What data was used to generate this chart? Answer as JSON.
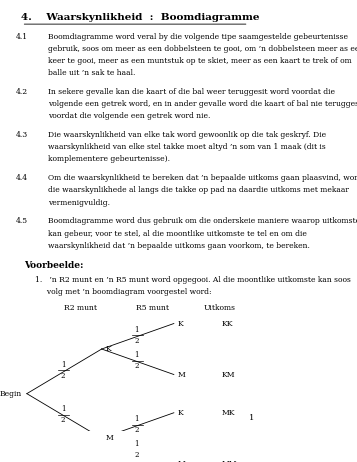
{
  "title": "4.    Waarskynlikheid  :  Boomdiagramme",
  "background_color": "#ffffff",
  "text_color": "#000000",
  "page_number": "1",
  "sections": [
    {
      "num": "4.1",
      "text": "Boomdiagramme word veral by die volgende tipe saamgestelde gebeurtenisse\ngebruik, soos om meer as een dobbelsteen te gooi, om ’n dobbelsteen meer as een\nkeer te gooi, meer as een muntstuk op te skiet, meer as een kaart te trek of om\nballe uit ’n sak te haal."
    },
    {
      "num": "4.2",
      "text": "In sekere gevalle kan die kaart of die bal weer teruggesit word voordat die\nvolgende een getrek word, en in ander gevalle word die kaart of bal nie teruggesit\nvoordat die volgende een getrek word nie."
    },
    {
      "num": "4.3",
      "text": "Die waarskynlikheid van elke tak word gewoonlik op die tak geskryf. Die\nwaarskynlikheid van elke stel takke moet altyd ’n som van 1 maak (dit is\nkomplementere gebeurtenisse)."
    },
    {
      "num": "4.4",
      "text": "Om die waarskynlikheid te bereken dat ’n bepaalde uitkoms gaan plaasvind, word\ndie waarskynlikhede al langs die takke op pad na daardie uitkoms met mekaar\nvermenigvuldig."
    },
    {
      "num": "4.5",
      "text": "Boomdiagramme word dus gebruik om die onderskeie maniere waarop uitkomste\nkan gebeur, voor te stel, al die moontlike uitkomste te tel en om die\nwaarskynlikheid dat ’n bepaalde uitkoms gaan voorkom, te bereken."
    }
  ],
  "voorbeelde_title": "Voorbeelde:",
  "example_intro": "1.   ’n R2 munt en ’n R5 munt word opgegooi. Al die moontlike uitkomste kan soos\n     volg met ’n boomdiagram voorgestel word:",
  "tree": {
    "col_labels": [
      "R2 munt",
      "R5 munt",
      "Uitkoms"
    ],
    "node_labels_level1": [
      "K",
      "M"
    ],
    "node_labels_level2": [
      "K",
      "M",
      "K",
      "M"
    ],
    "outcome_labels": [
      "KK",
      "KM",
      "MK",
      "MM"
    ],
    "branch_label": "1/2"
  }
}
